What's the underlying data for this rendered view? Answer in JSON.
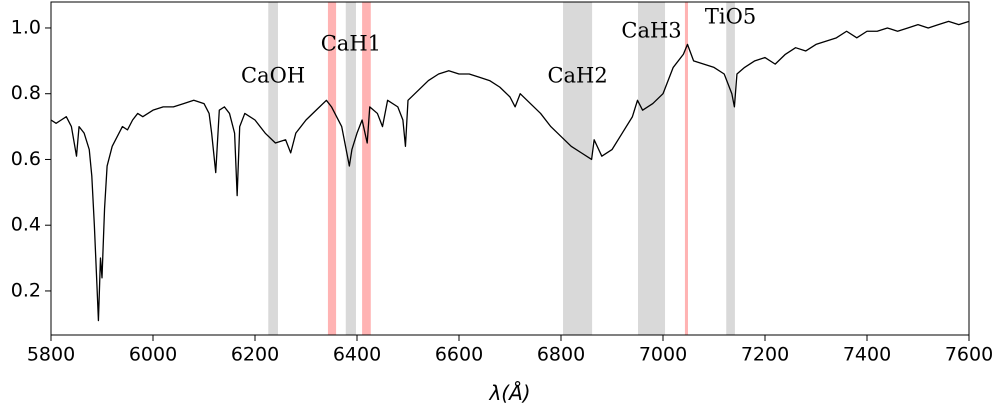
{
  "chart_data": {
    "type": "line",
    "xlabel": "λ(Å)",
    "xlim": [
      5800,
      7600
    ],
    "ylim": [
      0.066,
      1.079
    ],
    "xticks": [
      5800,
      6000,
      6200,
      6400,
      6600,
      6800,
      7000,
      7200,
      7400,
      7600
    ],
    "yticks": [
      0.2,
      0.4,
      0.6,
      0.8,
      {
        "value": 1,
        "label": "1.0"
      }
    ],
    "bands": [
      {
        "label": "CaOH",
        "range": [
          6226,
          6245
        ],
        "color": "#d9d9d9"
      },
      {
        "range": [
          6343,
          6359
        ],
        "color": "#ffb3b3"
      },
      {
        "label": "CaH1",
        "range": [
          6378,
          6398
        ],
        "color": "#d9d9d9"
      },
      {
        "range": [
          6410,
          6427
        ],
        "color": "#ffb3b3"
      },
      {
        "label": "CaH2",
        "range": [
          6804,
          6861
        ],
        "color": "#d9d9d9"
      },
      {
        "label": "CaH3",
        "range": [
          6951,
          7004
        ],
        "color": "#d9d9d9"
      },
      {
        "range": [
          7043,
          7049
        ],
        "color": "#ffb3b3"
      },
      {
        "label": "TiO5",
        "range": [
          7124,
          7141
        ],
        "color": "#d9d9d9"
      }
    ],
    "series": [
      {
        "color": "#000000",
        "x": [
          5800,
          5810,
          5820,
          5830,
          5840,
          5850,
          5855,
          5865,
          5875,
          5880,
          5885,
          5890,
          5893,
          5897,
          5900,
          5905,
          5910,
          5920,
          5930,
          5940,
          5950,
          5960,
          5970,
          5980,
          6000,
          6020,
          6040,
          6060,
          6080,
          6100,
          6110,
          6115,
          6123,
          6130,
          6140,
          6150,
          6160,
          6165,
          6170,
          6180,
          6200,
          6220,
          6240,
          6260,
          6270,
          6280,
          6300,
          6320,
          6340,
          6350,
          6370,
          6380,
          6385,
          6390,
          6400,
          6410,
          6420,
          6425,
          6440,
          6450,
          6460,
          6480,
          6490,
          6495,
          6500,
          6520,
          6540,
          6560,
          6580,
          6600,
          6620,
          6640,
          6660,
          6680,
          6700,
          6710,
          6720,
          6740,
          6760,
          6780,
          6800,
          6820,
          6840,
          6860,
          6865,
          6880,
          6900,
          6920,
          6940,
          6950,
          6960,
          6980,
          7000,
          7020,
          7040,
          7048,
          7060,
          7080,
          7100,
          7120,
          7135,
          7140,
          7145,
          7160,
          7180,
          7200,
          7220,
          7240,
          7260,
          7280,
          7300,
          7320,
          7340,
          7360,
          7380,
          7400,
          7420,
          7440,
          7460,
          7480,
          7500,
          7520,
          7540,
          7560,
          7580,
          7600
        ],
        "values": [
          0.72,
          0.71,
          0.72,
          0.73,
          0.7,
          0.61,
          0.7,
          0.68,
          0.63,
          0.55,
          0.4,
          0.22,
          0.11,
          0.3,
          0.24,
          0.45,
          0.58,
          0.64,
          0.67,
          0.7,
          0.69,
          0.72,
          0.74,
          0.73,
          0.75,
          0.76,
          0.76,
          0.77,
          0.78,
          0.77,
          0.74,
          0.68,
          0.56,
          0.75,
          0.76,
          0.74,
          0.68,
          0.49,
          0.7,
          0.74,
          0.72,
          0.68,
          0.65,
          0.66,
          0.62,
          0.68,
          0.72,
          0.75,
          0.78,
          0.76,
          0.7,
          0.62,
          0.58,
          0.63,
          0.68,
          0.72,
          0.65,
          0.76,
          0.74,
          0.7,
          0.78,
          0.76,
          0.72,
          0.64,
          0.78,
          0.81,
          0.84,
          0.86,
          0.87,
          0.86,
          0.86,
          0.85,
          0.84,
          0.82,
          0.79,
          0.76,
          0.8,
          0.77,
          0.74,
          0.7,
          0.67,
          0.64,
          0.62,
          0.6,
          0.66,
          0.61,
          0.63,
          0.68,
          0.73,
          0.78,
          0.75,
          0.77,
          0.8,
          0.88,
          0.92,
          0.95,
          0.9,
          0.89,
          0.88,
          0.86,
          0.8,
          0.76,
          0.86,
          0.88,
          0.9,
          0.91,
          0.89,
          0.92,
          0.94,
          0.93,
          0.95,
          0.96,
          0.97,
          0.99,
          0.97,
          0.99,
          0.99,
          1.0,
          0.99,
          1.0,
          1.01,
          1.0,
          1.01,
          1.02,
          1.01,
          1.02
        ]
      }
    ]
  }
}
